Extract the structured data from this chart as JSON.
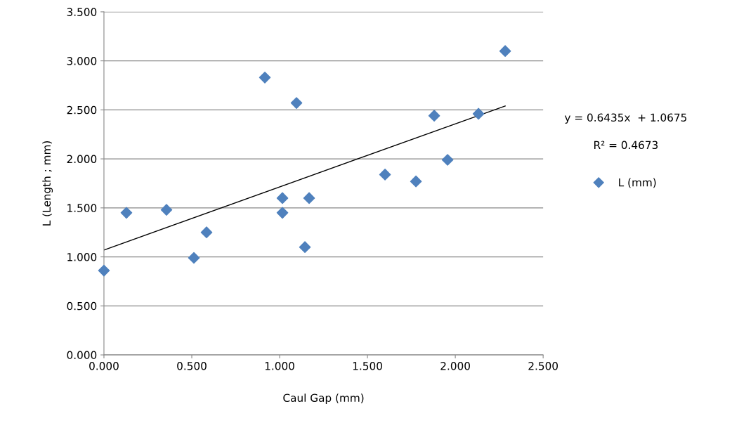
{
  "chart_data": {
    "type": "scatter",
    "xlabel": "Caul Gap (mm)",
    "ylabel": "L (Length ; mm)",
    "annotations": [
      "y = 0.6435x  + 1.0675",
      "R² = 0.4673"
    ],
    "series": [
      {
        "name": "L (mm)",
        "color": "#4f81bd",
        "marker": "diamond",
        "x": [
          0.0,
          0.128,
          0.356,
          0.512,
          0.584,
          0.916,
          1.016,
          1.016,
          1.096,
          1.144,
          1.168,
          1.6,
          1.776,
          1.88,
          1.956,
          2.132,
          2.284
        ],
        "values": [
          0.86,
          1.45,
          1.48,
          0.99,
          1.25,
          2.83,
          1.6,
          1.45,
          2.57,
          1.1,
          1.6,
          1.84,
          1.77,
          2.44,
          1.99,
          2.46,
          3.1
        ]
      },
      {
        "type": "line",
        "color": "#000000",
        "marker": "none",
        "x": [
          0.0,
          2.284
        ],
        "values": [
          1.07,
          2.54
        ]
      }
    ],
    "xlim": [
      0,
      2.5
    ],
    "ylim": [
      0,
      3.5
    ],
    "xticks": [
      {
        "value": 0,
        "label": "0.000"
      },
      {
        "value": 0.5,
        "label": "0.500"
      },
      {
        "value": 1.0,
        "label": "1.000"
      },
      {
        "value": 1.5,
        "label": "1.500"
      },
      {
        "value": 2.0,
        "label": "2.000"
      },
      {
        "value": 2.5,
        "label": "2.500"
      }
    ],
    "yticks": [
      {
        "value": 0,
        "label": "0.000"
      },
      {
        "value": 0.5,
        "label": "0.500"
      },
      {
        "value": 1.0,
        "label": "1.000"
      },
      {
        "value": 1.5,
        "label": "1.500"
      },
      {
        "value": 2.0,
        "label": "2.000"
      },
      {
        "value": 2.5,
        "label": "2.500"
      },
      {
        "value": 3.0,
        "label": "3.000"
      },
      {
        "value": 3.5,
        "label": "3.500"
      }
    ],
    "grid": "y",
    "legend": "right"
  }
}
